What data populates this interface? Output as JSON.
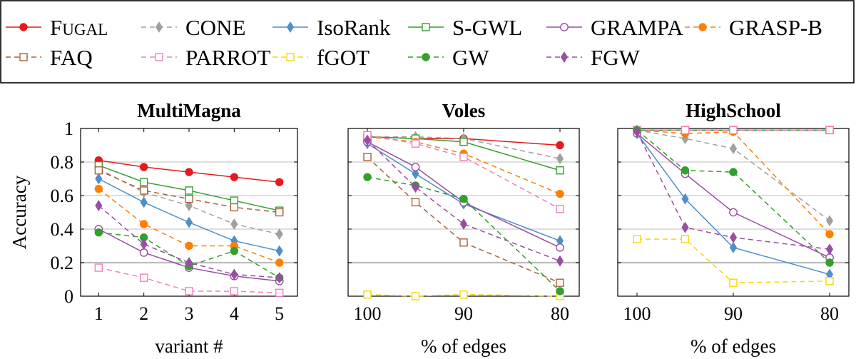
{
  "legend": {
    "position": "top",
    "entries": [
      {
        "key": "fugal",
        "label": "FUGAL",
        "color": "#e41a1c",
        "dash": "solid",
        "marker": "circle-filled"
      },
      {
        "key": "cone",
        "label": "CONE",
        "color": "#a0a0a0",
        "dash": "dashed",
        "marker": "diamond-filled"
      },
      {
        "key": "isorank",
        "label": "IsoRank",
        "color": "#4f8ec9",
        "dash": "solid",
        "marker": "diamond-filled"
      },
      {
        "key": "sgwl",
        "label": "S-GWL",
        "color": "#33a02c",
        "dash": "solid",
        "marker": "square-open"
      },
      {
        "key": "grampa",
        "label": "GRAMPA",
        "color": "#984ea3",
        "dash": "solid",
        "marker": "circle-open"
      },
      {
        "key": "graspb",
        "label": "GRASP-B",
        "color": "#ff7f00",
        "dash": "dashed",
        "marker": "circle-filled"
      },
      {
        "key": "faq",
        "label": "FAQ",
        "color": "#a6633a",
        "dash": "dashed",
        "marker": "square-open"
      },
      {
        "key": "parrot",
        "label": "PARROT",
        "color": "#f07fc0",
        "dash": "dashed",
        "marker": "square-open"
      },
      {
        "key": "fgot",
        "label": "fGOT",
        "color": "#f5d800",
        "dash": "dashed",
        "marker": "square-open"
      },
      {
        "key": "gw",
        "label": "GW",
        "color": "#33a02c",
        "dash": "dashed",
        "marker": "circle-filled"
      },
      {
        "key": "fgw",
        "label": "FGW",
        "color": "#984ea3",
        "dash": "dashed",
        "marker": "diamond-filled"
      }
    ]
  },
  "chart_data": [
    {
      "type": "line",
      "title": "MultiMagna",
      "xlabel": "variant #",
      "ylabel": "Accuracy",
      "x": [
        1,
        2,
        3,
        4,
        5
      ],
      "xlim": [
        0.6,
        5.4
      ],
      "x_reversed": false,
      "ylim": [
        0,
        1
      ],
      "yticks": [
        "0",
        "0.2",
        "0.4",
        "0.6",
        "0.8",
        "1"
      ],
      "xticks": [
        "1",
        "2",
        "3",
        "4",
        "5"
      ],
      "grid": "horizontal",
      "series": [
        {
          "name": "FUGAL",
          "values": [
            0.81,
            0.77,
            0.74,
            0.71,
            0.68
          ]
        },
        {
          "name": "CONE",
          "values": [
            0.76,
            0.62,
            0.54,
            0.43,
            0.37
          ]
        },
        {
          "name": "IsoRank",
          "values": [
            0.7,
            0.56,
            0.44,
            0.33,
            0.27
          ]
        },
        {
          "name": "S-GWL",
          "values": [
            0.78,
            0.68,
            0.63,
            0.57,
            0.51
          ]
        },
        {
          "name": "GRAMPA",
          "values": [
            0.4,
            0.26,
            0.17,
            0.12,
            0.09
          ]
        },
        {
          "name": "GRASP-B",
          "values": [
            0.64,
            0.43,
            0.3,
            0.3,
            0.2
          ]
        },
        {
          "name": "FAQ",
          "values": [
            0.75,
            0.63,
            0.58,
            0.53,
            0.5
          ]
        },
        {
          "name": "PARROT",
          "values": [
            0.17,
            0.11,
            0.03,
            0.03,
            0.02
          ]
        },
        {
          "name": "fGOT",
          "values": [
            null,
            null,
            null,
            null,
            null
          ]
        },
        {
          "name": "GW",
          "values": [
            0.38,
            0.35,
            0.18,
            0.27,
            0.11
          ]
        },
        {
          "name": "FGW",
          "values": [
            0.54,
            0.31,
            0.2,
            0.13,
            0.11
          ]
        }
      ]
    },
    {
      "type": "line",
      "title": "Voles",
      "xlabel": "% of edges",
      "ylabel": "",
      "x": [
        100,
        95,
        90,
        80
      ],
      "xlim": [
        102,
        78
      ],
      "x_reversed": true,
      "ylim": [
        0,
        1
      ],
      "yticks": [],
      "xticks": [
        "100",
        "90",
        "80"
      ],
      "grid": "horizontal",
      "series": [
        {
          "name": "FUGAL",
          "values": [
            0.95,
            0.94,
            0.94,
            0.9
          ]
        },
        {
          "name": "CONE",
          "values": [
            0.95,
            0.95,
            0.94,
            0.82
          ]
        },
        {
          "name": "IsoRank",
          "values": [
            0.91,
            0.73,
            0.55,
            0.33
          ]
        },
        {
          "name": "S-GWL",
          "values": [
            0.95,
            0.94,
            0.92,
            0.75
          ]
        },
        {
          "name": "GRAMPA",
          "values": [
            0.92,
            0.77,
            0.56,
            0.29
          ]
        },
        {
          "name": "GRASP-B",
          "values": [
            0.95,
            0.92,
            0.85,
            0.61
          ]
        },
        {
          "name": "FAQ",
          "values": [
            0.83,
            0.56,
            0.32,
            0.08
          ]
        },
        {
          "name": "PARROT",
          "values": [
            0.96,
            0.91,
            0.83,
            0.52
          ]
        },
        {
          "name": "fGOT",
          "values": [
            0.01,
            0.0,
            0.01,
            0.0
          ]
        },
        {
          "name": "GW",
          "values": [
            0.71,
            0.66,
            0.58,
            0.03
          ]
        },
        {
          "name": "FGW",
          "values": [
            0.93,
            0.65,
            0.43,
            0.21
          ]
        }
      ]
    },
    {
      "type": "line",
      "title": "HighSchool",
      "xlabel": "% of edges",
      "ylabel": "",
      "x": [
        100,
        95,
        90,
        80
      ],
      "xlim": [
        102,
        78
      ],
      "x_reversed": true,
      "ylim": [
        0,
        1
      ],
      "yticks": [],
      "xticks": [
        "100",
        "90",
        "80"
      ],
      "grid": "horizontal",
      "series": [
        {
          "name": "FUGAL",
          "values": [
            0.99,
            0.99,
            0.99,
            0.99
          ]
        },
        {
          "name": "CONE",
          "values": [
            0.99,
            0.94,
            0.88,
            0.45
          ]
        },
        {
          "name": "IsoRank",
          "values": [
            0.97,
            0.58,
            0.29,
            0.13
          ]
        },
        {
          "name": "S-GWL",
          "values": [
            0.99,
            0.99,
            0.99,
            0.99
          ]
        },
        {
          "name": "GRAMPA",
          "values": [
            0.97,
            0.73,
            0.5,
            0.23
          ]
        },
        {
          "name": "GRASP-B",
          "values": [
            0.99,
            0.97,
            0.98,
            0.37
          ]
        },
        {
          "name": "FAQ",
          "values": [
            0.99,
            0.99,
            0.99,
            0.99
          ]
        },
        {
          "name": "PARROT",
          "values": [
            0.99,
            0.99,
            0.99,
            0.99
          ]
        },
        {
          "name": "fGOT",
          "values": [
            0.34,
            0.34,
            0.08,
            0.09
          ]
        },
        {
          "name": "GW",
          "values": [
            0.99,
            0.75,
            0.74,
            0.2
          ]
        },
        {
          "name": "FGW",
          "values": [
            0.98,
            0.41,
            0.35,
            0.28
          ]
        }
      ]
    }
  ]
}
